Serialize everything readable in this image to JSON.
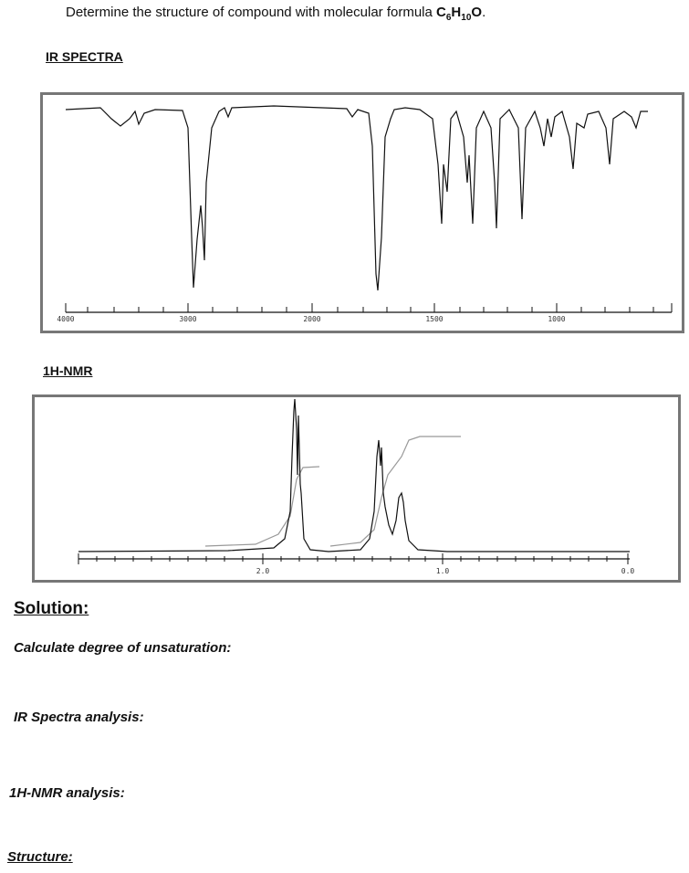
{
  "question": {
    "text": "Determine the structure of compound with molecular formula ",
    "formula": [
      "C",
      "6",
      "H",
      "10",
      "O",
      "."
    ]
  },
  "ir": {
    "title": "IR SPECTRA",
    "ticks": [
      "4000",
      "3000",
      "2000",
      "1500",
      "1000"
    ]
  },
  "nmr": {
    "title": "1H-NMR",
    "ticks": [
      "2.0",
      "1.0",
      "0.0"
    ]
  },
  "solution": {
    "title": "Solution:",
    "items": [
      "Calculate degree of unsaturation:",
      "IR Spectra analysis:",
      "1H-NMR analysis:"
    ],
    "structure": "Structure:"
  }
}
